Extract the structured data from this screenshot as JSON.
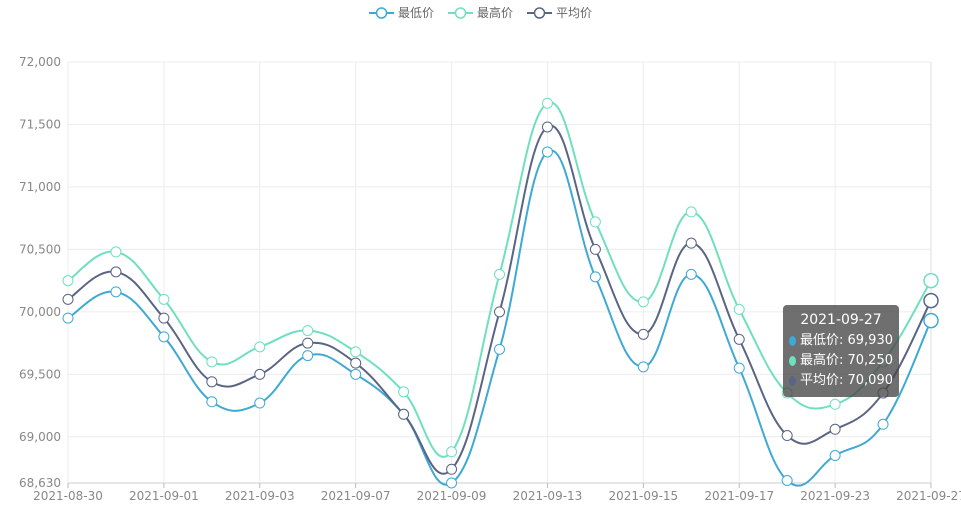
{
  "legend": {
    "items": [
      {
        "label": "最低价",
        "color": "#3fa9d5"
      },
      {
        "label": "最高价",
        "color": "#6fe0bd"
      },
      {
        "label": "平均价",
        "color": "#5a6585"
      }
    ]
  },
  "tooltip": {
    "title": "2021-09-27",
    "rows": [
      {
        "text": "最低价: 69,930",
        "color": "#3fa9d5"
      },
      {
        "text": "最高价: 70,250",
        "color": "#6fe0bd"
      },
      {
        "text": "平均价: 70,090",
        "color": "#5a6585"
      }
    ]
  },
  "chart_data": {
    "type": "line",
    "x": [
      "2021-08-30",
      "2021-08-31",
      "2021-09-01",
      "2021-09-02",
      "2021-09-03",
      "2021-09-04",
      "2021-09-07",
      "2021-09-08",
      "2021-09-09",
      "2021-09-10",
      "2021-09-13",
      "2021-09-14",
      "2021-09-15",
      "2021-09-16",
      "2021-09-17",
      "2021-09-22",
      "2021-09-23",
      "2021-09-24",
      "2021-09-27"
    ],
    "tick_labels": [
      "2021-08-30",
      "2021-09-01",
      "2021-09-03",
      "2021-09-07",
      "2021-09-09",
      "2021-09-13",
      "2021-09-15",
      "2021-09-17",
      "2021-09-23",
      "2021-09-27"
    ],
    "y_ticks": [
      "68,630",
      "69,000",
      "69,500",
      "70,000",
      "70,500",
      "71,000",
      "71,500",
      "72,000"
    ],
    "y_tick_values": [
      68630,
      69000,
      69500,
      70000,
      70500,
      71000,
      71500,
      72000
    ],
    "ylim": [
      68630,
      72000
    ],
    "grid": true,
    "smooth": true,
    "legend_position": "top-center",
    "series": [
      {
        "name": "最低价",
        "color": "#3fa9d5",
        "values": [
          69950,
          70160,
          69800,
          69280,
          69270,
          69650,
          69500,
          69180,
          68630,
          69700,
          71280,
          70280,
          69560,
          70300,
          69550,
          68650,
          68850,
          69100,
          69930
        ]
      },
      {
        "name": "最高价",
        "color": "#6fe0bd",
        "values": [
          70250,
          70480,
          70100,
          69600,
          69720,
          69850,
          69680,
          69360,
          68880,
          70300,
          71670,
          70720,
          70080,
          70800,
          70020,
          69350,
          69260,
          69600,
          70250
        ]
      },
      {
        "name": "平均价",
        "color": "#5a6585",
        "values": [
          70100,
          70320,
          69950,
          69440,
          69500,
          69750,
          69590,
          69180,
          68740,
          70000,
          71480,
          70500,
          69820,
          70550,
          69780,
          69010,
          69060,
          69350,
          70090
        ]
      }
    ]
  }
}
